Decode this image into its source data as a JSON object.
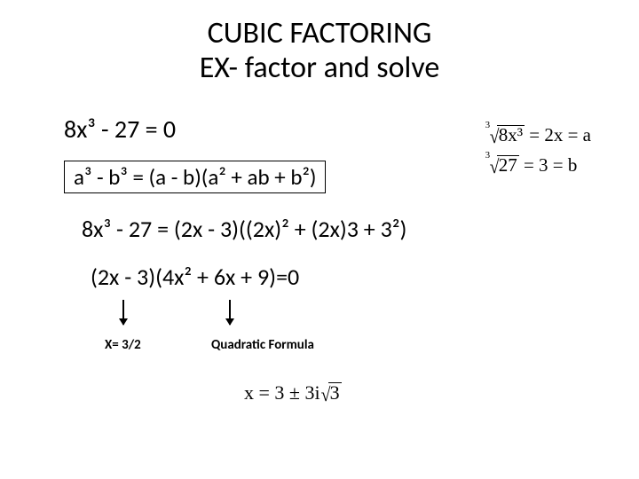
{
  "title": {
    "line1": "CUBIC FACTORING",
    "line2": "EX- factor and solve"
  },
  "equations": {
    "original": "8x³ - 27 = 0",
    "identity": "a³ - b³ = (a - b)(a² + ab + b²)",
    "expanded": "8x³ - 27 = (2x - 3)((2x)² + (2x)3 + 3²)",
    "factored": "(2x - 3)(4x² + 6x + 9)=0"
  },
  "solutions": {
    "root1_label": "X= 3/2",
    "root2_label": "Quadratic Formula"
  },
  "sidework": {
    "row1": {
      "index": "3",
      "radicand": "8x³",
      "equals": " = 2x = a"
    },
    "row2": {
      "index": "3",
      "radicand": "27",
      "equals": " = 3 = b"
    }
  },
  "final": {
    "prefix": "x = 3 ± 3i",
    "radicand": "3"
  },
  "colors": {
    "text": "#000000",
    "bg": "#ffffff"
  }
}
